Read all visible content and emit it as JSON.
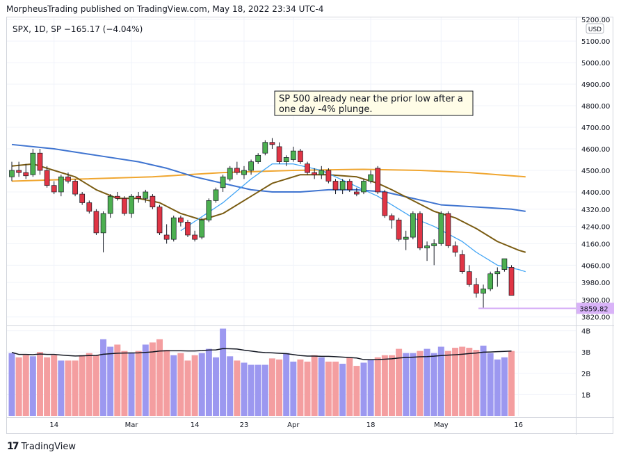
{
  "publisher_line": "MorpheusTrading published on TradingView.com, May 18, 2022 23:34 UTC-4",
  "legend": "SPX, 1D, SP  −165.17 (−4.04%)",
  "currency": "USD",
  "annotation": [
    "SP 500 already near the prior low after a",
    "one day -4% plunge."
  ],
  "last_price_label": "3859.82",
  "footer": {
    "logo": "17",
    "brand": "TradingView"
  },
  "colors": {
    "up": "#4caf50",
    "down": "#e03545",
    "ma10": "#42a5f5",
    "ma20": "#7a5c12",
    "ma50": "#3f74d0",
    "ma200": "#f0a630",
    "vol_up": "#9c98f0",
    "vol_down": "#f49ea0",
    "support": "#d6aef6",
    "label_bg": "#d9b3f8"
  },
  "chart_data": {
    "type": "candlestick",
    "title": "SPX, 1D, SP",
    "price_axis": {
      "range": [
        3790,
        5210
      ],
      "ticks": [
        3820,
        3900,
        3980,
        4060,
        4160,
        4240,
        4320,
        4400,
        4500,
        4600,
        4700,
        4800,
        4900,
        5000,
        5100,
        5200
      ]
    },
    "volume_axis": {
      "range": [
        0,
        4.15
      ],
      "ticks": [
        {
          "v": 1,
          "label": "1B"
        },
        {
          "v": 2,
          "label": "2B"
        },
        {
          "v": 3,
          "label": "3B"
        },
        {
          "v": 4,
          "label": "4B"
        }
      ]
    },
    "x_ticks": [
      {
        "i": 6,
        "label": "14"
      },
      {
        "i": 17,
        "label": "Mar"
      },
      {
        "i": 26,
        "label": "14"
      },
      {
        "i": 33,
        "label": "23"
      },
      {
        "i": 40,
        "label": "Apr"
      },
      {
        "i": 51,
        "label": "18"
      },
      {
        "i": 61,
        "label": "May"
      },
      {
        "i": 72,
        "label": "16"
      }
    ],
    "candles": [
      [
        4470,
        4540,
        4450,
        4500
      ],
      [
        4500,
        4540,
        4470,
        4490
      ],
      [
        4490,
        4530,
        4460,
        4475
      ],
      [
        4480,
        4600,
        4470,
        4580
      ],
      [
        4580,
        4600,
        4480,
        4500
      ],
      [
        4500,
        4520,
        4420,
        4430
      ],
      [
        4430,
        4450,
        4390,
        4400
      ],
      [
        4400,
        4480,
        4380,
        4470
      ],
      [
        4470,
        4490,
        4440,
        4450
      ],
      [
        4450,
        4460,
        4380,
        4390
      ],
      [
        4390,
        4400,
        4340,
        4350
      ],
      [
        4350,
        4360,
        4300,
        4310
      ],
      [
        4310,
        4320,
        4200,
        4210
      ],
      [
        4210,
        4310,
        4120,
        4300
      ],
      [
        4300,
        4390,
        4280,
        4380
      ],
      [
        4380,
        4400,
        4360,
        4370
      ],
      [
        4370,
        4380,
        4290,
        4300
      ],
      [
        4300,
        4390,
        4280,
        4380
      ],
      [
        4380,
        4400,
        4350,
        4370
      ],
      [
        4370,
        4410,
        4350,
        4400
      ],
      [
        4380,
        4390,
        4320,
        4330
      ],
      [
        4330,
        4340,
        4200,
        4210
      ],
      [
        4200,
        4250,
        4160,
        4180
      ],
      [
        4180,
        4290,
        4170,
        4280
      ],
      [
        4280,
        4290,
        4240,
        4260
      ],
      [
        4260,
        4270,
        4190,
        4200
      ],
      [
        4200,
        4220,
        4170,
        4180
      ],
      [
        4190,
        4280,
        4180,
        4270
      ],
      [
        4270,
        4370,
        4260,
        4360
      ],
      [
        4360,
        4420,
        4350,
        4410
      ],
      [
        4420,
        4480,
        4400,
        4470
      ],
      [
        4460,
        4520,
        4450,
        4510
      ],
      [
        4510,
        4540,
        4480,
        4490
      ],
      [
        4480,
        4520,
        4460,
        4500
      ],
      [
        4500,
        4550,
        4480,
        4540
      ],
      [
        4540,
        4580,
        4530,
        4570
      ],
      [
        4580,
        4640,
        4570,
        4630
      ],
      [
        4630,
        4650,
        4600,
        4620
      ],
      [
        4610,
        4630,
        4530,
        4540
      ],
      [
        4540,
        4570,
        4520,
        4560
      ],
      [
        4550,
        4610,
        4540,
        4590
      ],
      [
        4590,
        4600,
        4530,
        4540
      ],
      [
        4530,
        4540,
        4480,
        4490
      ],
      [
        4490,
        4510,
        4460,
        4480
      ],
      [
        4480,
        4520,
        4460,
        4500
      ],
      [
        4500,
        4510,
        4440,
        4450
      ],
      [
        4450,
        4460,
        4390,
        4410
      ],
      [
        4410,
        4460,
        4390,
        4450
      ],
      [
        4450,
        4460,
        4400,
        4410
      ],
      [
        4400,
        4420,
        4380,
        4390
      ],
      [
        4400,
        4460,
        4390,
        4450
      ],
      [
        4450,
        4500,
        4440,
        4480
      ],
      [
        4510,
        4520,
        4390,
        4400
      ],
      [
        4400,
        4410,
        4280,
        4290
      ],
      [
        4290,
        4300,
        4230,
        4270
      ],
      [
        4270,
        4280,
        4170,
        4180
      ],
      [
        4180,
        4220,
        4130,
        4190
      ],
      [
        4190,
        4310,
        4180,
        4300
      ],
      [
        4300,
        4310,
        4130,
        4140
      ],
      [
        4140,
        4170,
        4080,
        4150
      ],
      [
        4150,
        4180,
        4060,
        4160
      ],
      [
        4160,
        4310,
        4150,
        4300
      ],
      [
        4300,
        4310,
        4140,
        4150
      ],
      [
        4150,
        4170,
        4100,
        4120
      ],
      [
        4110,
        4130,
        4020,
        4030
      ],
      [
        4030,
        4060,
        3960,
        3970
      ],
      [
        3970,
        4000,
        3910,
        3930
      ],
      [
        3930,
        3970,
        3860,
        3950
      ],
      [
        3950,
        4030,
        3940,
        4020
      ],
      [
        4020,
        4050,
        3960,
        4030
      ],
      [
        4040,
        4090,
        4030,
        4090
      ],
      [
        4050,
        4060,
        3920,
        3920
      ]
    ],
    "volumes": [
      2.95,
      2.75,
      2.85,
      2.8,
      3.0,
      2.75,
      2.85,
      2.6,
      2.6,
      2.6,
      2.85,
      2.95,
      2.85,
      3.6,
      3.25,
      3.35,
      3.05,
      2.95,
      3.05,
      3.35,
      3.45,
      3.6,
      3.1,
      2.85,
      2.95,
      2.6,
      2.85,
      2.95,
      3.15,
      2.75,
      4.1,
      2.8,
      2.6,
      2.5,
      2.4,
      2.4,
      2.4,
      2.7,
      2.65,
      2.95,
      2.55,
      2.65,
      2.55,
      2.85,
      2.75,
      2.55,
      2.55,
      2.45,
      2.75,
      2.35,
      2.5,
      2.65,
      2.75,
      2.85,
      2.85,
      3.15,
      2.95,
      2.95,
      3.05,
      3.15,
      2.95,
      3.25,
      3.05,
      3.2,
      3.25,
      3.2,
      3.1,
      3.3,
      2.95,
      2.65,
      2.75,
      3.05
    ],
    "moving_averages": {
      "ma10": [
        [
          24,
          4220
        ],
        [
          30,
          4350
        ],
        [
          34,
          4460
        ],
        [
          37,
          4530
        ],
        [
          40,
          4530
        ],
        [
          44,
          4500
        ],
        [
          48,
          4440
        ],
        [
          52,
          4380
        ],
        [
          54,
          4340
        ],
        [
          57,
          4280
        ],
        [
          60,
          4240
        ],
        [
          64,
          4170
        ],
        [
          66,
          4120
        ],
        [
          69,
          4060
        ],
        [
          72,
          4040
        ],
        [
          73,
          4030
        ]
      ],
      "ma20": [
        [
          0,
          4520
        ],
        [
          3,
          4530
        ],
        [
          6,
          4500
        ],
        [
          9,
          4470
        ],
        [
          12,
          4410
        ],
        [
          15,
          4370
        ],
        [
          18,
          4370
        ],
        [
          21,
          4350
        ],
        [
          24,
          4300
        ],
        [
          27,
          4270
        ],
        [
          30,
          4300
        ],
        [
          34,
          4380
        ],
        [
          37,
          4440
        ],
        [
          41,
          4480
        ],
        [
          45,
          4480
        ],
        [
          49,
          4470
        ],
        [
          52,
          4440
        ],
        [
          54,
          4410
        ],
        [
          57,
          4360
        ],
        [
          60,
          4310
        ],
        [
          63,
          4280
        ],
        [
          66,
          4230
        ],
        [
          69,
          4170
        ],
        [
          72,
          4130
        ],
        [
          73,
          4120
        ]
      ],
      "ma50": [
        [
          0,
          4620
        ],
        [
          6,
          4600
        ],
        [
          12,
          4570
        ],
        [
          18,
          4540
        ],
        [
          22,
          4510
        ],
        [
          26,
          4470
        ],
        [
          30,
          4440
        ],
        [
          34,
          4410
        ],
        [
          37,
          4400
        ],
        [
          41,
          4400
        ],
        [
          45,
          4410
        ],
        [
          49,
          4410
        ],
        [
          53,
          4400
        ],
        [
          57,
          4370
        ],
        [
          61,
          4340
        ],
        [
          66,
          4330
        ],
        [
          71,
          4320
        ],
        [
          73,
          4310
        ]
      ],
      "ma200": [
        [
          0,
          4450
        ],
        [
          10,
          4460
        ],
        [
          20,
          4470
        ],
        [
          30,
          4490
        ],
        [
          40,
          4500
        ],
        [
          50,
          4505
        ],
        [
          58,
          4500
        ],
        [
          65,
          4490
        ],
        [
          73,
          4470
        ]
      ]
    },
    "support_level": 3859.82
  }
}
